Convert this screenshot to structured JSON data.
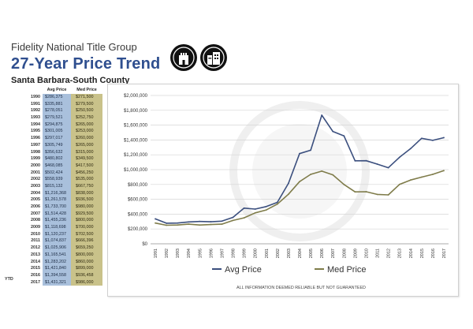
{
  "header": {
    "company": "Fidelity National Title Group",
    "title": "27-Year Price Trend",
    "region": "Santa Barbara-South County",
    "logo_1_icon": "castle-tower-icon",
    "logo_2_icon": "city-buildings-icon"
  },
  "table": {
    "col_year": "",
    "col_avg": "Avg Price",
    "col_med": "Med Price",
    "ytd_label": "YTD",
    "rows": [
      {
        "year": "1990",
        "avg": "$286,375",
        "med": "$271,500"
      },
      {
        "year": "1991",
        "avg": "$335,881",
        "med": "$279,500"
      },
      {
        "year": "1992",
        "avg": "$278,051",
        "med": "$250,500"
      },
      {
        "year": "1993",
        "avg": "$279,521",
        "med": "$252,750"
      },
      {
        "year": "1994",
        "avg": "$294,875",
        "med": "$265,000"
      },
      {
        "year": "1995",
        "avg": "$301,005",
        "med": "$253,000"
      },
      {
        "year": "1996",
        "avg": "$297,017",
        "med": "$260,000"
      },
      {
        "year": "1997",
        "avg": "$305,749",
        "med": "$265,000"
      },
      {
        "year": "1998",
        "avg": "$356,632",
        "med": "$315,000"
      },
      {
        "year": "1999",
        "avg": "$480,802",
        "med": "$349,500"
      },
      {
        "year": "2000",
        "avg": "$468,085",
        "med": "$417,500"
      },
      {
        "year": "2001",
        "avg": "$502,424",
        "med": "$456,250"
      },
      {
        "year": "2002",
        "avg": "$558,939",
        "med": "$535,000"
      },
      {
        "year": "2003",
        "avg": "$815,132",
        "med": "$667,750"
      },
      {
        "year": "2004",
        "avg": "$1,216,368",
        "med": "$838,000"
      },
      {
        "year": "2005",
        "avg": "$1,261,578",
        "med": "$936,500"
      },
      {
        "year": "2006",
        "avg": "$1,733,700",
        "med": "$980,000"
      },
      {
        "year": "2007",
        "avg": "$1,514,428",
        "med": "$929,500"
      },
      {
        "year": "2008",
        "avg": "$1,455,236",
        "med": "$800,000"
      },
      {
        "year": "2009",
        "avg": "$1,118,698",
        "med": "$700,000"
      },
      {
        "year": "2010",
        "avg": "$1,120,237",
        "med": "$702,500"
      },
      {
        "year": "2011",
        "avg": "$1,074,837",
        "med": "$666,396"
      },
      {
        "year": "2012",
        "avg": "$1,025,906",
        "med": "$659,250"
      },
      {
        "year": "2013",
        "avg": "$1,165,541",
        "med": "$800,000"
      },
      {
        "year": "2014",
        "avg": "$1,283,202",
        "med": "$860,000"
      },
      {
        "year": "2015",
        "avg": "$1,421,840",
        "med": "$899,000"
      },
      {
        "year": "2016",
        "avg": "$1,394,558",
        "med": "$936,458"
      },
      {
        "year": "2017",
        "avg": "$1,431,321",
        "med": "$986,000"
      }
    ]
  },
  "footnote": "ALL INFORMATION DEEMED RELIABLE BUT NOT GUARANTEED",
  "colors": {
    "avg_line": "#3b4f7e",
    "med_line": "#7f7c4a",
    "avg_column": "#a9c0dc",
    "med_column": "#c9c28a",
    "title": "#2f4f8f"
  },
  "chart_data": {
    "type": "line",
    "title": "",
    "xlabel": "",
    "ylabel": "",
    "x": [
      "1991",
      "1992",
      "1993",
      "1994",
      "1995",
      "1996",
      "1997",
      "1998",
      "1999",
      "2000",
      "2001",
      "2002",
      "2003",
      "2004",
      "2005",
      "2006",
      "2007",
      "2008",
      "2009",
      "2010",
      "2011",
      "2012",
      "2013",
      "2014",
      "2015",
      "2016",
      "2017"
    ],
    "ylim": [
      0,
      2000000
    ],
    "yticks": [
      "$0",
      "$200,000",
      "$400,000",
      "$600,000",
      "$800,000",
      "$1,000,000",
      "$1,200,000",
      "$1,400,000",
      "$1,600,000",
      "$1,800,000",
      "$2,000,000"
    ],
    "grid": true,
    "legend": "bottom",
    "series": [
      {
        "name": "Avg Price",
        "color": "#3b4f7e",
        "values": [
          335881,
          278051,
          279521,
          294875,
          301005,
          297017,
          305749,
          356632,
          480802,
          468085,
          502424,
          558939,
          815132,
          1216368,
          1261578,
          1733700,
          1514428,
          1455236,
          1118698,
          1120237,
          1074837,
          1025906,
          1165541,
          1283202,
          1421840,
          1394558,
          1431321
        ]
      },
      {
        "name": "Med Price",
        "color": "#7f7c4a",
        "values": [
          279500,
          250500,
          252750,
          265000,
          253000,
          260000,
          265000,
          315000,
          349500,
          417500,
          456250,
          535000,
          667750,
          838000,
          936500,
          980000,
          929500,
          800000,
          700000,
          702500,
          666396,
          659250,
          800000,
          860000,
          899000,
          936458,
          986000
        ]
      }
    ]
  }
}
